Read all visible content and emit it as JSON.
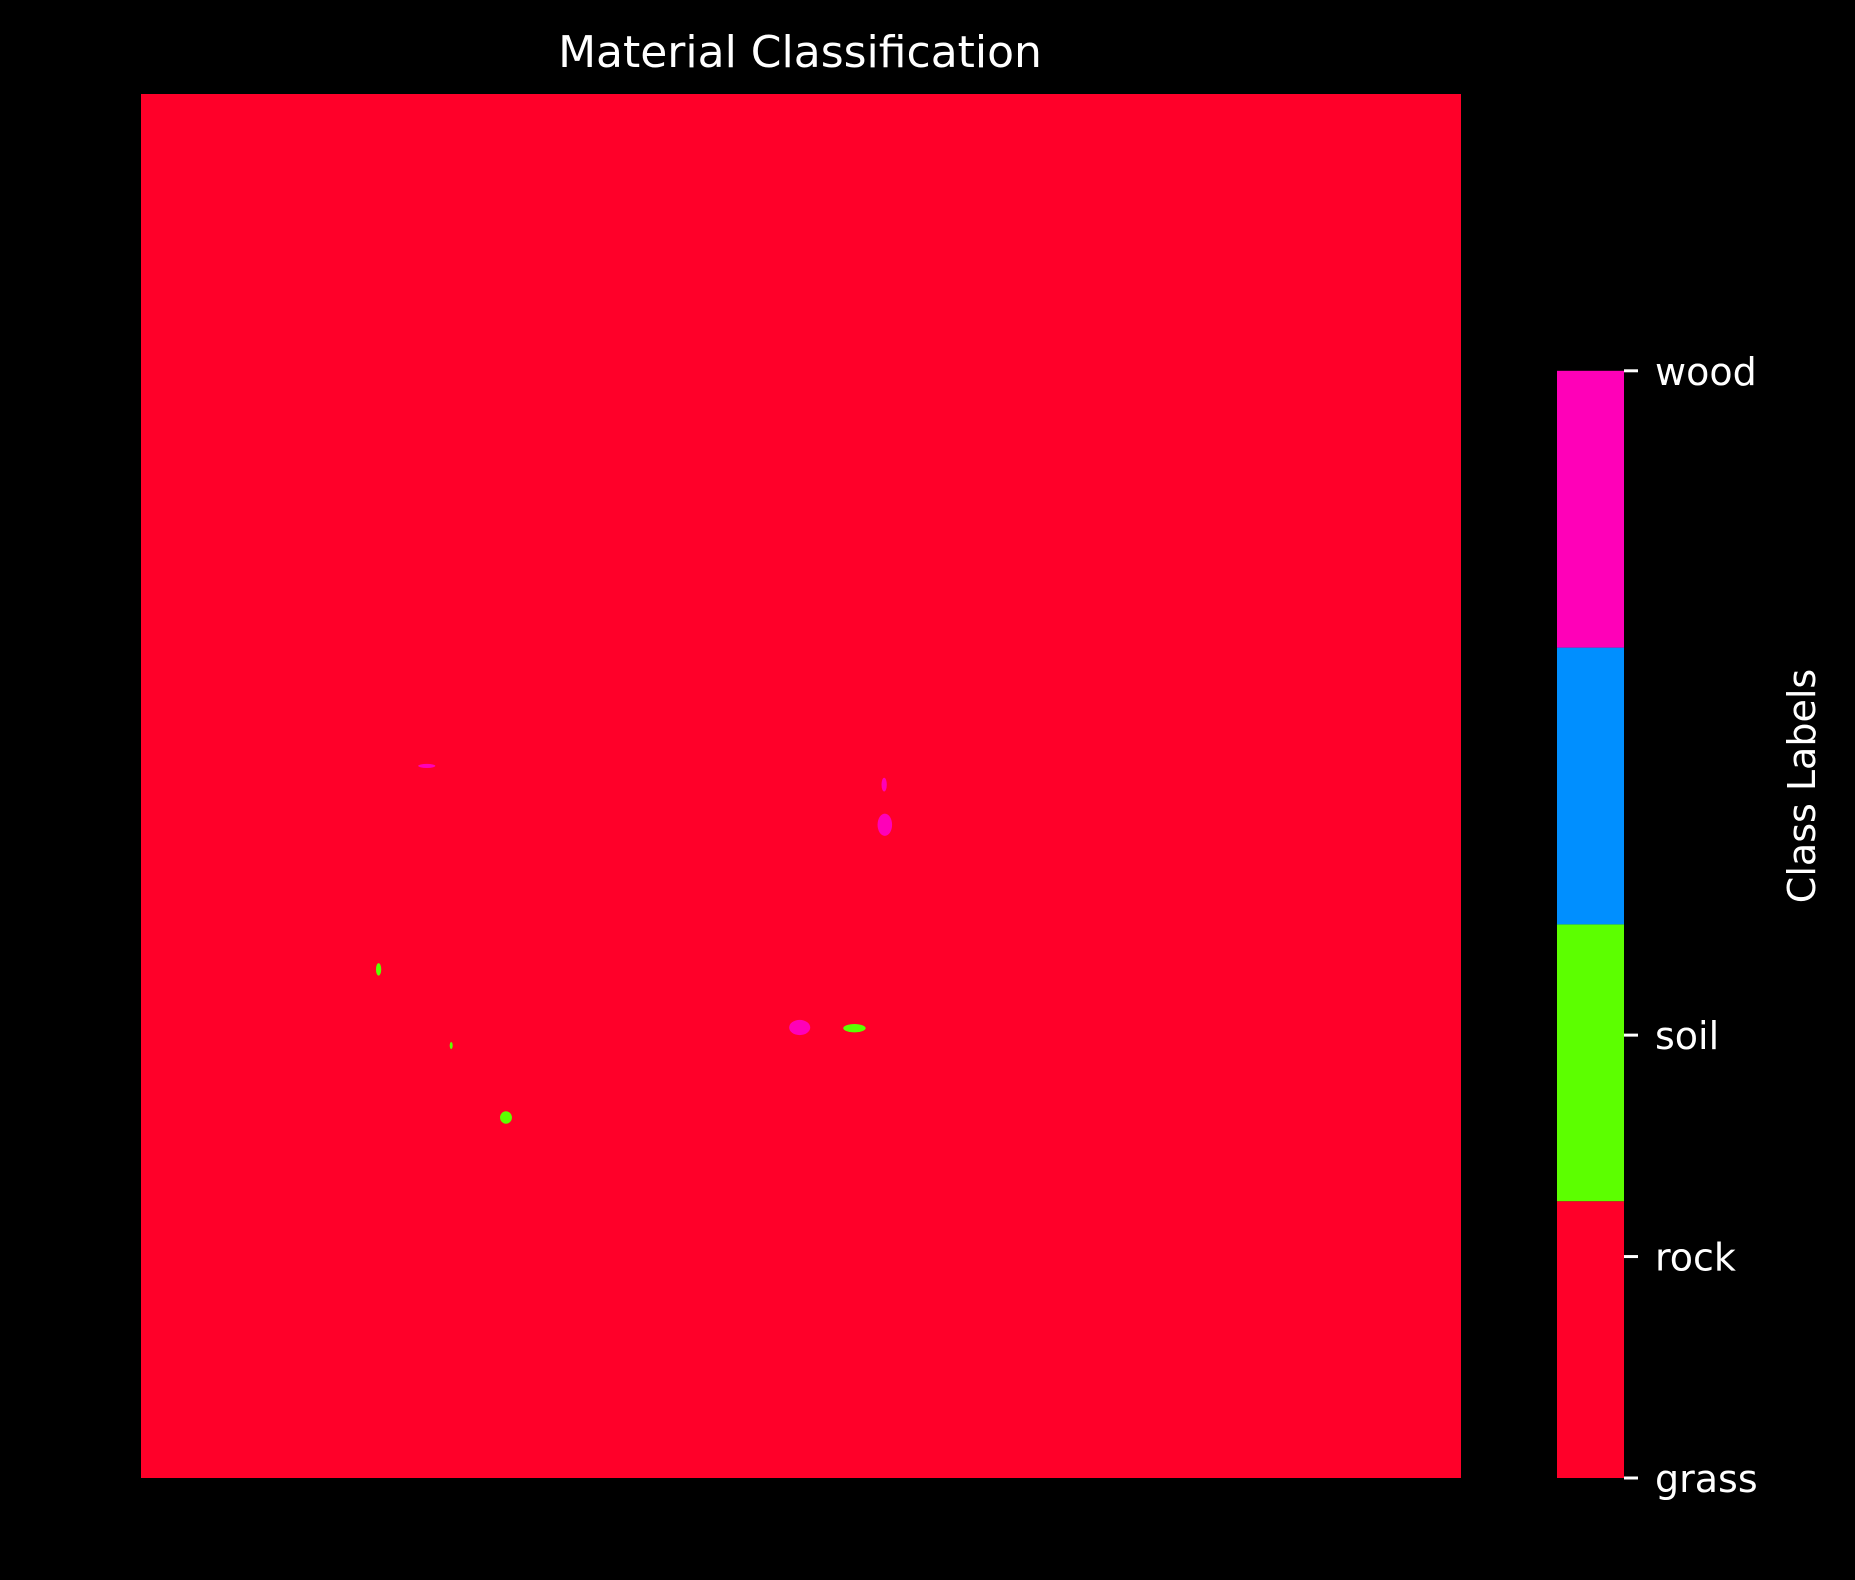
{
  "chart_data": {
    "type": "heatmap",
    "title": "Material Classification",
    "xlabel": "",
    "ylabel": "",
    "background": "#000000",
    "text_color": "#ffffff",
    "base_class": "rock",
    "classes": [
      {
        "name": "grass",
        "color": "#ff0029"
      },
      {
        "name": "rock",
        "color": "#ff0029"
      },
      {
        "name": "soil",
        "color": "#5cff00"
      },
      {
        "name": "",
        "color": "#008fff"
      },
      {
        "name": "wood",
        "color": "#ff00b8"
      }
    ],
    "colorbar": {
      "label": "Class Labels",
      "range": [
        0,
        5
      ],
      "segments": [
        {
          "from": 0.0,
          "to": 1.0,
          "color": "#ff0029"
        },
        {
          "from": 1.0,
          "to": 2.0,
          "color": "#5cff00"
        },
        {
          "from": 2.0,
          "to": 3.0,
          "color": "#008fff"
        },
        {
          "from": 3.0,
          "to": 4.0,
          "color": "#ff00b8"
        }
      ],
      "ticks": [
        {
          "value": 0.0,
          "label": "grass"
        },
        {
          "value": 0.8,
          "label": "rock"
        },
        {
          "value": 1.6,
          "label": "soil"
        },
        {
          "value": 4.0,
          "label": "wood"
        }
      ]
    },
    "regions": [
      {
        "class": "wood",
        "u": 0.21,
        "v": 0.484,
        "du": 0.013,
        "dv": 0.003
      },
      {
        "class": "wood",
        "u": 0.561,
        "v": 0.494,
        "du": 0.004,
        "dv": 0.01
      },
      {
        "class": "wood",
        "u": 0.558,
        "v": 0.52,
        "du": 0.011,
        "dv": 0.016
      },
      {
        "class": "soil",
        "u": 0.178,
        "v": 0.628,
        "du": 0.004,
        "dv": 0.009
      },
      {
        "class": "soil",
        "u": 0.234,
        "v": 0.685,
        "du": 0.002,
        "dv": 0.005
      },
      {
        "class": "soil",
        "u": 0.272,
        "v": 0.735,
        "du": 0.009,
        "dv": 0.009
      },
      {
        "class": "wood",
        "u": 0.491,
        "v": 0.669,
        "du": 0.016,
        "dv": 0.011
      },
      {
        "class": "soil",
        "u": 0.532,
        "v": 0.672,
        "du": 0.017,
        "dv": 0.006
      }
    ]
  }
}
